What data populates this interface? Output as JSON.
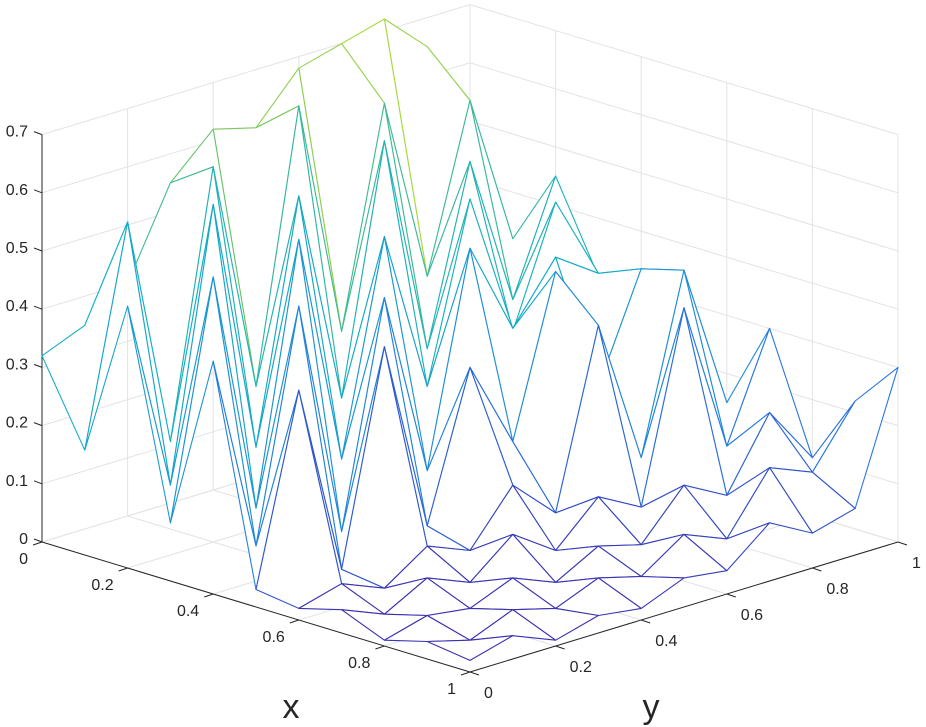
{
  "chart_data": {
    "type": "surface-mesh",
    "title": "",
    "xlabel": "x",
    "ylabel": "y",
    "zlabel": "",
    "xlim": [
      0,
      1
    ],
    "ylim": [
      0,
      1
    ],
    "zlim": [
      0,
      0.7
    ],
    "grid": true,
    "x_ticks": [
      "0",
      "0.2",
      "0.4",
      "0.6",
      "0.8",
      "1"
    ],
    "y_ticks": [
      "0",
      "0.2",
      "0.4",
      "0.6",
      "0.8",
      "1"
    ],
    "z_ticks": [
      "0",
      "0.1",
      "0.2",
      "0.3",
      "0.4",
      "0.5",
      "0.6",
      "0.7"
    ],
    "x": [
      0,
      0.1,
      0.2,
      0.3,
      0.4,
      0.5,
      0.6,
      0.7,
      0.8,
      0.9,
      1.0
    ],
    "y": [
      0,
      0.1,
      0.2,
      0.3,
      0.4,
      0.5,
      0.6,
      0.7,
      0.8,
      0.9,
      1.0
    ],
    "z": [
      [
        0.32,
        0.35,
        0.4,
        0.55,
        0.62,
        0.6,
        0.68,
        0.7,
        0.72,
        0.65,
        0.4
      ],
      [
        0.18,
        0.55,
        0.15,
        0.6,
        0.2,
        0.66,
        0.25,
        0.62,
        0.3,
        0.58,
        0.32
      ],
      [
        0.45,
        0.12,
        0.58,
        0.14,
        0.55,
        0.18,
        0.6,
        0.22,
        0.52,
        0.26,
        0.45
      ],
      [
        0.1,
        0.5,
        0.08,
        0.52,
        0.12,
        0.48,
        0.2,
        0.5,
        0.25,
        0.45,
        0.3
      ],
      [
        0.4,
        0.06,
        0.45,
        0.04,
        0.42,
        0.1,
        0.46,
        0.3,
        0.4,
        0.35,
        0.25
      ],
      [
        0.03,
        0.35,
        0.02,
        0.38,
        0.05,
        0.3,
        0.15,
        0.42,
        0.2,
        0.38,
        0.32
      ],
      [
        0.02,
        0.04,
        0.01,
        0.06,
        0.03,
        0.12,
        0.05,
        0.35,
        0.1,
        0.4,
        0.15
      ],
      [
        0.04,
        0.01,
        0.05,
        0.02,
        0.08,
        0.03,
        0.1,
        0.06,
        0.38,
        0.12,
        0.3
      ],
      [
        0.01,
        0.03,
        0.02,
        0.05,
        0.02,
        0.06,
        0.04,
        0.12,
        0.08,
        0.2,
        0.1
      ],
      [
        0.03,
        0.01,
        0.04,
        0.02,
        0.05,
        0.03,
        0.08,
        0.05,
        0.15,
        0.12,
        0.22
      ],
      [
        0.02,
        0.04,
        0.01,
        0.03,
        0.02,
        0.05,
        0.04,
        0.1,
        0.06,
        0.08,
        0.3
      ]
    ]
  }
}
